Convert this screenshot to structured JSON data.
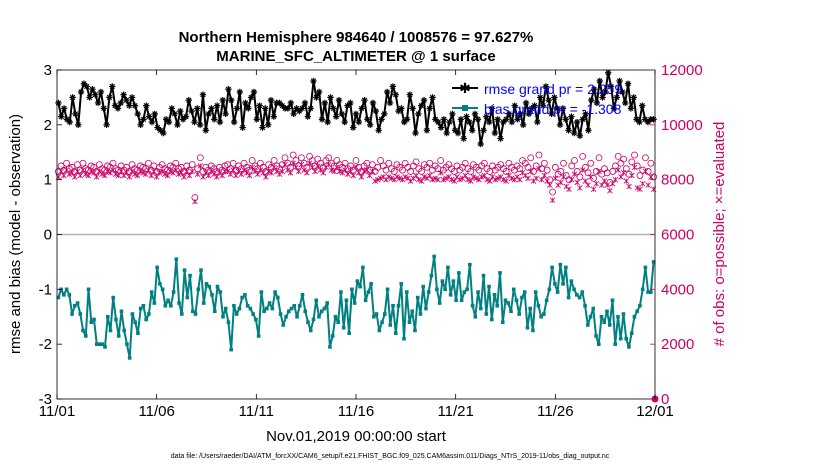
{
  "chart_data": {
    "type": "line",
    "title_line1": "Northern Hemisphere 984640 / 1008576 = 97.627%",
    "title_line2": "MARINE_SFC_ALTIMETER @ 1 surface",
    "xlabel": "Nov.01,2019 00:00:00 start",
    "ylabel_left": "rmse and bias (model - observation)",
    "ylabel_right": "# of obs: o=possible; ×=evaluated",
    "x_ticks": [
      "11/01",
      "11/06",
      "11/11",
      "11/16",
      "11/21",
      "11/26",
      "12/01"
    ],
    "x_range_days": [
      0,
      30
    ],
    "ylim_left": [
      -3,
      3
    ],
    "yticks_left": [
      "-3",
      "-2",
      "-1",
      "0",
      "1",
      "2",
      "3"
    ],
    "ylim_right": [
      0,
      12000
    ],
    "yticks_right": [
      "0",
      "2000",
      "4000",
      "6000",
      "8000",
      "10000",
      "12000"
    ],
    "legend": {
      "rmse_label": "rmse grand pr = 2.259",
      "bias_label": "bias grand pr = -1.308",
      "position": "top-right"
    },
    "footer": "data file: /Users/raeder/DAI/ATM_forcXX/CAM6_setup/f.e21.FHIST_BGC.f09_025.CAM6assim.011/Diags_NTrS_2019-11/obs_diag_output.nc",
    "colors": {
      "rmse": "#000000",
      "bias": "#008080",
      "obs": "#cc0066",
      "zero_line": "#b3b3b3"
    },
    "series": [
      {
        "name": "rmse",
        "axis": "left",
        "values": [
          2.4,
          2.15,
          2.3,
          2.1,
          2.05,
          2.5,
          2.2,
          2.0,
          2.6,
          2.75,
          2.7,
          2.5,
          2.65,
          2.55,
          2.4,
          2.6,
          2.3,
          2.0,
          2.5,
          2.7,
          2.35,
          2.3,
          2.4,
          2.55,
          2.45,
          2.35,
          2.5,
          2.35,
          2.2,
          2.0,
          2.1,
          2.35,
          2.15,
          2.05,
          2.2,
          1.95,
          1.9,
          1.85,
          2.1,
          2.05,
          2.3,
          2.2,
          2.0,
          2.25,
          2.1,
          2.15,
          2.45,
          2.25,
          2.05,
          2.3,
          2.0,
          2.55,
          1.9,
          2.2,
          2.3,
          2.1,
          2.35,
          2.05,
          2.45,
          2.2,
          2.65,
          2.45,
          2.05,
          2.3,
          2.6,
          1.95,
          2.4,
          2.3,
          2.5,
          2.6,
          2.1,
          2.35,
          1.95,
          2.3,
          2.0,
          2.45,
          2.15,
          2.4,
          2.4,
          2.35,
          2.3,
          2.3,
          2.4,
          2.2,
          2.3,
          2.25,
          2.3,
          2.4,
          2.15,
          2.3,
          2.8,
          2.5,
          2.6,
          2.1,
          2.4,
          2.05,
          2.5,
          2.3,
          2.15,
          2.45,
          2.2,
          2.05,
          2.35,
          2.4,
          1.95,
          2.2,
          2.05,
          2.3,
          2.45,
          2.1,
          2.0,
          2.4,
          2.25,
          1.9,
          2.1,
          2.2,
          2.6,
          2.4,
          2.7,
          2.55,
          2.25,
          2.3,
          2.05,
          2.1,
          2.55,
          2.3,
          1.85,
          2.2,
          2.35,
          2.45,
          1.9,
          2.3,
          2.5,
          2.1,
          2.05,
          1.95,
          2.1,
          1.85,
          2.05,
          2.2,
          1.9,
          1.85,
          2.1,
          1.75,
          2.15,
          2.05,
          1.9,
          2.2,
          2.1,
          1.65,
          1.9,
          2.15,
          2.05,
          2.3,
          1.85,
          2.1,
          1.75,
          2.05,
          2.1,
          2.2,
          2.05,
          2.35,
          2.1,
          2.2,
          2.0,
          2.4,
          2.2,
          2.3,
          2.35,
          2.05,
          2.5,
          2.35,
          2.7,
          2.45,
          2.2,
          2.5,
          2.3,
          2.0,
          2.3,
          2.1,
          1.9,
          2.15,
          1.85,
          2.05,
          1.8,
          2.1,
          2.2,
          1.9,
          2.45,
          2.65,
          2.4,
          2.8,
          2.5,
          2.6,
          2.95,
          2.7,
          2.3,
          2.5,
          2.8,
          2.6,
          2.4,
          2.75,
          2.3,
          2.5,
          2.1,
          2.05,
          2.35,
          2.1,
          2.05,
          2.1,
          2.1
        ]
      },
      {
        "name": "bias",
        "axis": "left",
        "values": [
          -1.15,
          -1.0,
          -1.1,
          -1.0,
          -1.1,
          -1.45,
          -1.3,
          -1.25,
          -1.45,
          -1.75,
          -1.85,
          -1.0,
          -1.6,
          -1.55,
          -2.0,
          -2.0,
          -2.0,
          -2.05,
          -1.5,
          -1.75,
          -1.15,
          -1.55,
          -1.85,
          -1.4,
          -1.75,
          -2.0,
          -2.25,
          -1.45,
          -1.6,
          -1.8,
          -1.35,
          -1.3,
          -1.55,
          -1.45,
          -1.05,
          -1.25,
          -0.6,
          -0.9,
          -1.0,
          -1.3,
          -1.2,
          -1.3,
          -1.05,
          -0.45,
          -1.25,
          -1.45,
          -0.65,
          -1.15,
          -0.75,
          -1.4,
          -1.45,
          -1.0,
          -0.65,
          -1.25,
          -0.9,
          -0.95,
          -1.1,
          -1.4,
          -0.95,
          -1.05,
          -1.5,
          -1.35,
          -1.6,
          -2.1,
          -1.3,
          -1.45,
          -1.35,
          -1.15,
          -1.1,
          -1.3,
          -1.35,
          -1.45,
          -1.55,
          -1.85,
          -1.05,
          -1.4,
          -1.35,
          -1.25,
          -1.35,
          -1.05,
          -1.15,
          -1.45,
          -1.65,
          -1.5,
          -1.4,
          -1.35,
          -1.3,
          -1.5,
          -1.3,
          -1.1,
          -1.4,
          -1.6,
          -1.75,
          -1.55,
          -1.2,
          -1.5,
          -1.4,
          -1.35,
          -1.25,
          -2.05,
          -1.85,
          -1.5,
          -1.6,
          -1.05,
          -1.7,
          -1.2,
          -1.8,
          -1.0,
          -1.25,
          -0.85,
          -0.95,
          -0.6,
          -1.2,
          -1.05,
          -0.9,
          -1.5,
          -1.45,
          -1.75,
          -1.6,
          -1.45,
          -1.0,
          -1.65,
          -1.3,
          -1.8,
          -1.3,
          -0.9,
          -1.9,
          -1.05,
          -1.6,
          -1.4,
          -1.75,
          -1.15,
          -1.45,
          -0.95,
          -1.35,
          -1.05,
          -0.75,
          -0.4,
          -1.0,
          -1.25,
          -0.85,
          -1.0,
          -0.6,
          -1.1,
          -0.85,
          -1.2,
          -0.7,
          -1.2,
          -1.05,
          -1.0,
          -0.55,
          -1.3,
          -1.5,
          -1.05,
          -1.35,
          -0.75,
          -1.45,
          -0.95,
          -1.55,
          -1.1,
          -1.3,
          -0.7,
          -1.6,
          -1.2,
          -1.25,
          -1.4,
          -1.0,
          -1.2,
          -1.45,
          -1.15,
          -1.05,
          -1.7,
          -1.35,
          -1.75,
          -1.05,
          -1.3,
          -1.5,
          -1.45,
          -1.2,
          -1.0,
          -0.6,
          -0.9,
          -1.05,
          -0.55,
          -0.9,
          -0.6,
          -1.15,
          -0.85,
          -1.0,
          -1.1,
          -1.15,
          -1.05,
          -1.3,
          -1.65,
          -1.5,
          -1.35,
          -1.85,
          -2.0,
          -1.5,
          -1.6,
          -1.4,
          -1.65,
          -1.2,
          -2.0,
          -1.5,
          -1.9,
          -1.45,
          -1.9,
          -2.05,
          -1.8,
          -1.5,
          -1.4,
          -1.3,
          -1.0,
          -0.6,
          -1.05,
          -1.05,
          -0.5
        ]
      },
      {
        "name": "obs_possible",
        "axis": "right",
        "values": [
          8300,
          8500,
          8350,
          8600,
          8400,
          8450,
          8300,
          8550,
          8350,
          8600,
          8400,
          8350,
          8500,
          8450,
          8300,
          8550,
          8400,
          8350,
          8500,
          8450,
          8600,
          8400,
          8350,
          8500,
          8350,
          8450,
          8300,
          8550,
          8400,
          8350,
          8500,
          8450,
          8400,
          8600,
          8350,
          8500,
          8300,
          8450,
          8550,
          8400,
          8350,
          8500,
          8450,
          8600,
          8400,
          8450,
          8300,
          8500,
          8350,
          8550,
          7350,
          8400,
          8800,
          8300,
          8450,
          8350,
          8500,
          8400,
          8300,
          8450,
          8350,
          8500,
          8550,
          8400,
          8600,
          8350,
          8500,
          8400,
          8600,
          8450,
          8350,
          8700,
          8500,
          8400,
          8600,
          8450,
          8300,
          8550,
          8450,
          8700,
          8500,
          8400,
          8550,
          8800,
          8600,
          8450,
          8900,
          8700,
          8500,
          8800,
          8600,
          8450,
          8850,
          8700,
          8500,
          8750,
          8600,
          8450,
          8700,
          8800,
          8600,
          8500,
          8700,
          8550,
          8450,
          8600,
          8400,
          8500,
          8350,
          8700,
          8450,
          8300,
          8500,
          8600,
          8350,
          8550,
          8300,
          8450,
          8700,
          8500,
          8350,
          8600,
          8400,
          8300,
          8550,
          8450,
          8350,
          8600,
          8450,
          8300,
          8500,
          8650,
          8400,
          8300,
          8550,
          8450,
          8600,
          8350,
          8500,
          8400,
          8700,
          8350,
          8450,
          8550,
          8400,
          8300,
          8500,
          8350,
          8450,
          8600,
          8400,
          8300,
          8550,
          8450,
          8350,
          8500,
          8600,
          8400,
          8300,
          8500,
          8350,
          8450,
          8550,
          8400,
          8300,
          8600,
          8450,
          8350,
          8500,
          8400,
          8700,
          8600,
          8450,
          8800,
          8300,
          8500,
          8900,
          8400,
          8600,
          8350,
          8000,
          7550,
          8450,
          8200,
          8300,
          8600,
          8150,
          8000,
          8500,
          8700,
          8300,
          8100,
          8850,
          8450,
          8250,
          8600,
          8050,
          8300,
          8800,
          8200,
          8400,
          8250,
          7900,
          8300,
          8500,
          8850,
          8600,
          8750,
          8400,
          8200,
          8650,
          8900,
          8500,
          8150,
          8350,
          8800,
          8300,
          8600,
          8100
        ]
      },
      {
        "name": "obs_evaluated",
        "axis": "right",
        "values": [
          8100,
          8300,
          8150,
          8350,
          8200,
          8250,
          8100,
          8300,
          8150,
          8350,
          8200,
          8150,
          8300,
          8250,
          8100,
          8300,
          8200,
          8150,
          8300,
          8250,
          8350,
          8200,
          8150,
          8300,
          8150,
          8250,
          8100,
          8300,
          8200,
          8150,
          8300,
          8250,
          8200,
          8350,
          8150,
          8300,
          8100,
          8250,
          8300,
          8200,
          8150,
          8300,
          8250,
          8350,
          8200,
          8250,
          8100,
          8300,
          8150,
          8300,
          7200,
          8200,
          8500,
          8100,
          8250,
          8150,
          8300,
          8200,
          8100,
          8250,
          8150,
          8300,
          8300,
          8200,
          8350,
          8150,
          8300,
          8200,
          8350,
          8250,
          8150,
          8450,
          8300,
          8200,
          8350,
          8250,
          8100,
          8300,
          8250,
          8450,
          8300,
          8200,
          8300,
          8550,
          8350,
          8250,
          8600,
          8450,
          8300,
          8550,
          8350,
          8250,
          8600,
          8450,
          8300,
          8500,
          8350,
          8250,
          8450,
          8550,
          8350,
          8300,
          8450,
          8300,
          8250,
          8350,
          8200,
          8300,
          8150,
          8450,
          8250,
          8100,
          8300,
          8350,
          8150,
          8300,
          7950,
          8000,
          8050,
          8100,
          8000,
          8100,
          8050,
          8000,
          8100,
          8050,
          8000,
          8100,
          8050,
          7950,
          8050,
          8150,
          8000,
          7950,
          8100,
          8050,
          8150,
          8000,
          8050,
          8000,
          8250,
          8000,
          8050,
          8100,
          8000,
          7950,
          8100,
          8000,
          8050,
          8150,
          8000,
          7950,
          8100,
          8050,
          8000,
          8100,
          8150,
          8000,
          7950,
          8100,
          8000,
          8050,
          8100,
          8000,
          7950,
          8150,
          8050,
          8000,
          8100,
          8000,
          8250,
          8150,
          8050,
          8300,
          7950,
          8050,
          8400,
          8000,
          8150,
          7950,
          7800,
          7250,
          8050,
          7800,
          7900,
          8100,
          7750,
          7650,
          8000,
          8200,
          7900,
          7700,
          8350,
          7950,
          7800,
          8100,
          7650,
          7850,
          8300,
          7800,
          7950,
          7800,
          7600,
          7850,
          8000,
          8350,
          8100,
          8250,
          7950,
          7750,
          8150,
          8450,
          7700,
          7650,
          7850,
          8300,
          7800,
          8100,
          7650
        ]
      }
    ]
  }
}
